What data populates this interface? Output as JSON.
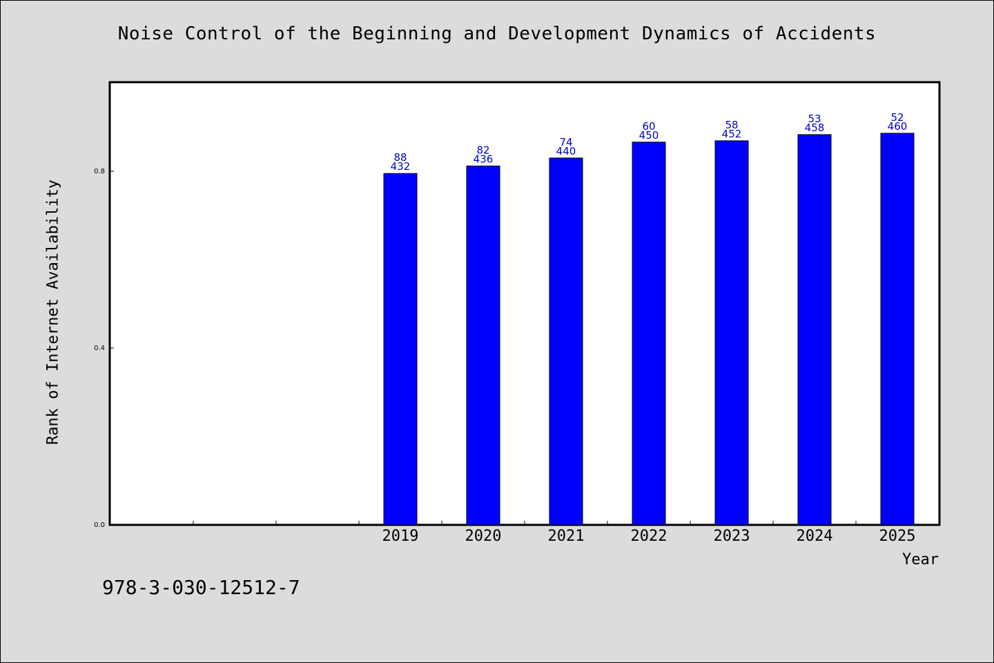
{
  "chart_data": {
    "type": "bar",
    "title": "Noise Control of the Beginning and Development Dynamics of Accidents",
    "xlabel": "Year",
    "ylabel": "Rank of Internet Availability",
    "categories": [
      "2019",
      "2020",
      "2021",
      "2022",
      "2023",
      "2024",
      "2025"
    ],
    "values": [
      0.795,
      0.812,
      0.83,
      0.866,
      0.869,
      0.883,
      0.886
    ],
    "bar_labels_top": [
      "88",
      "82",
      "74",
      "60",
      "58",
      "53",
      "52"
    ],
    "bar_labels_bottom": [
      "432",
      "436",
      "440",
      "450",
      "452",
      "458",
      "460"
    ],
    "ylim": [
      0,
      1
    ],
    "yticks": [
      "0.0",
      "0.4",
      "0.8"
    ],
    "ytick_values": [
      0,
      0.4,
      0.8
    ],
    "bar_color": "#0000ff",
    "label_color": "#0000cc",
    "grid": false,
    "legend": "none"
  },
  "footer": {
    "code": "978-3-030-12512-7"
  }
}
